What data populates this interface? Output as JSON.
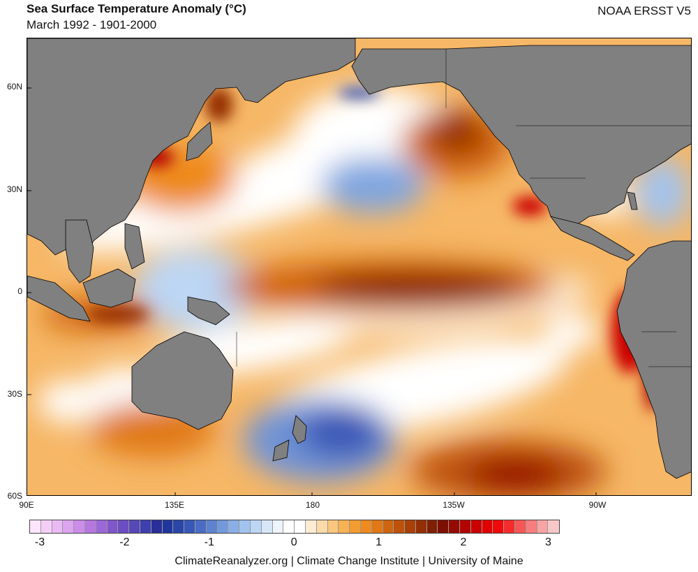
{
  "header": {
    "title": "Sea Surface Temperature Anomaly (°C)",
    "subtitle": "March 1992 - 1901-2000",
    "source": "NOAA ERSST V5"
  },
  "map": {
    "lat_labels": [
      "60N",
      "30N",
      "0",
      "30S",
      "60S"
    ],
    "lon_labels": [
      "90E",
      "135E",
      "180",
      "135W",
      "90W"
    ],
    "land_color": "#808080",
    "ocean_features": [
      {
        "name": "equatorial-pacific-warm-tongue",
        "anomaly": 2.0
      },
      {
        "name": "peru-coast-warm",
        "anomaly": 2.5
      },
      {
        "name": "north-pacific-cool",
        "anomaly": -0.8
      },
      {
        "name": "new-zealand-cool",
        "anomaly": -1.3
      }
    ]
  },
  "colorbar": {
    "tick_labels": [
      "-3",
      "-2",
      "-1",
      "0",
      "1",
      "2",
      "3"
    ],
    "colors": [
      "#fde6fb",
      "#f5cef8",
      "#ebbaf5",
      "#dda4f0",
      "#cc8de9",
      "#b677e0",
      "#9c67d6",
      "#8156cb",
      "#6c4dc2",
      "#5648b8",
      "#3f3fae",
      "#2a2e98",
      "#21369d",
      "#2a46a9",
      "#3858b7",
      "#4a6cc4",
      "#5d82d0",
      "#7299dc",
      "#8aaee6",
      "#a2c3ee",
      "#bcd6f4",
      "#d6e7f8",
      "#edf4fb",
      "#ffffff",
      "#ffffff",
      "#fdebd3",
      "#fcd9a9",
      "#fac77c",
      "#f7b252",
      "#f39c31",
      "#ee8a1e",
      "#e07816",
      "#d0650f",
      "#bd520b",
      "#a84008",
      "#942f05",
      "#811f03",
      "#7c0f00",
      "#960b00",
      "#b10600",
      "#cb0200",
      "#e00000",
      "#f00a0a",
      "#f52c2c",
      "#f65656",
      "#f67e7e",
      "#f7a4a4",
      "#f8c8c8"
    ],
    "range": [
      -3,
      3
    ]
  },
  "footer": {
    "credit": "ClimateReanalyzer.org | Climate Change Institute | University of Maine"
  }
}
